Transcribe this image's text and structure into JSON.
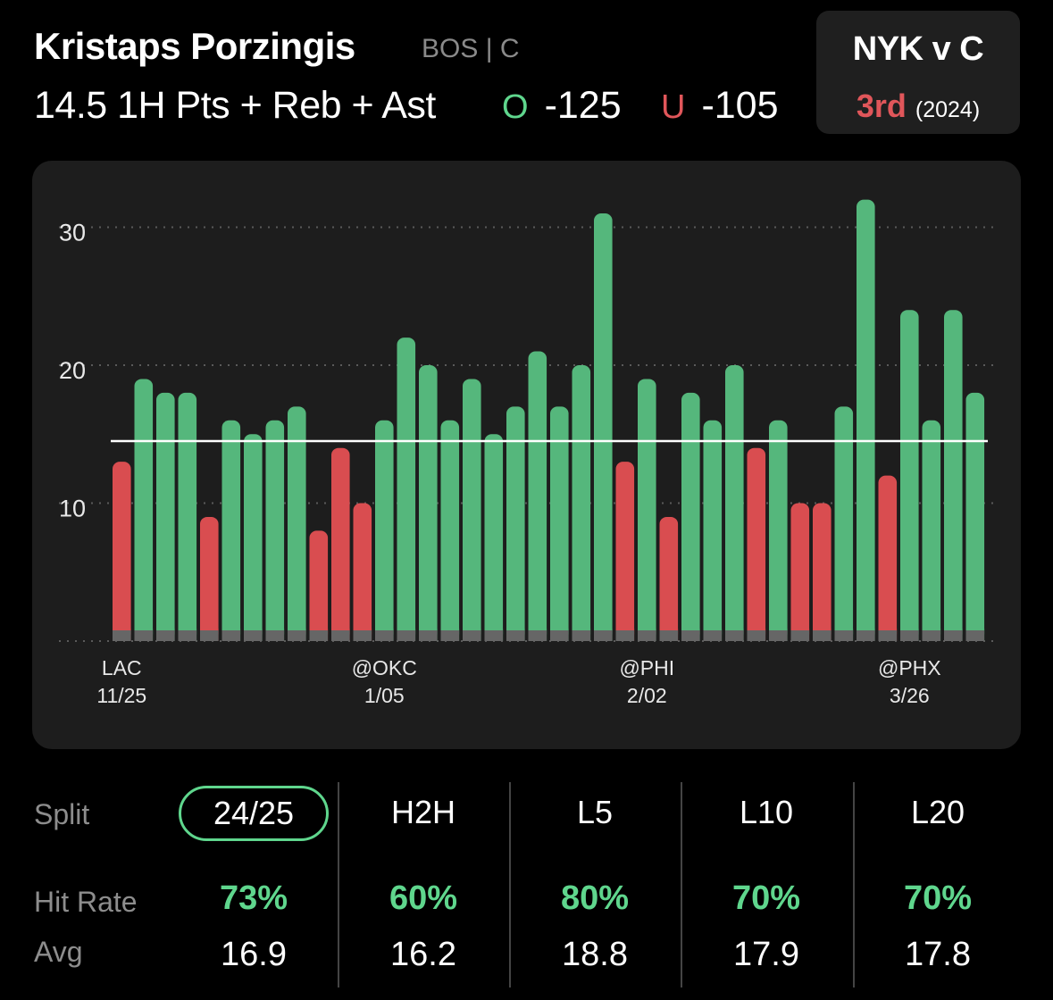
{
  "header": {
    "player_name": "Kristaps Porzingis",
    "team_position": "BOS | C",
    "prop_line": "14.5 1H Pts + Reb + Ast",
    "over": {
      "mark": "O",
      "odds": "-125"
    },
    "under": {
      "mark": "U",
      "odds": "-105"
    }
  },
  "matchup": {
    "title": "NYK v C",
    "rank": "3rd",
    "year": "(2024)"
  },
  "colors": {
    "over": "#55b77c",
    "under": "#d94d50",
    "accent_green": "#5fd68d",
    "accent_red": "#e0565a",
    "baseline_band": "#666666",
    "line": "#ffffff"
  },
  "chart_data": {
    "type": "bar",
    "line_value": 14.5,
    "ylim": [
      0,
      33
    ],
    "y_ticks": [
      10,
      20,
      30
    ],
    "grid": true,
    "values": [
      13,
      19,
      18,
      18,
      9,
      16,
      15,
      16,
      17,
      8,
      14,
      10,
      16,
      22,
      20,
      16,
      19,
      15,
      17,
      21,
      17,
      20,
      31,
      13,
      19,
      9,
      18,
      16,
      20,
      14,
      16,
      10,
      10,
      17,
      32,
      12,
      24,
      16,
      24,
      18
    ],
    "x_labels": [
      {
        "index": 0,
        "opponent": "LAC",
        "date": "11/25"
      },
      {
        "index": 12,
        "opponent": "@OKC",
        "date": "1/05"
      },
      {
        "index": 24,
        "opponent": "@PHI",
        "date": "2/02"
      },
      {
        "index": 36,
        "opponent": "@PHX",
        "date": "3/26"
      }
    ]
  },
  "splits": {
    "row_labels": {
      "split": "Split",
      "hit_rate": "Hit Rate",
      "avg": "Avg"
    },
    "columns": [
      {
        "label": "24/25",
        "hit_rate": "73%",
        "avg": "16.9",
        "active": true
      },
      {
        "label": "H2H",
        "hit_rate": "60%",
        "avg": "16.2",
        "active": false
      },
      {
        "label": "L5",
        "hit_rate": "80%",
        "avg": "18.8",
        "active": false
      },
      {
        "label": "L10",
        "hit_rate": "70%",
        "avg": "17.9",
        "active": false
      },
      {
        "label": "L20",
        "hit_rate": "70%",
        "avg": "17.8",
        "active": false
      }
    ]
  }
}
